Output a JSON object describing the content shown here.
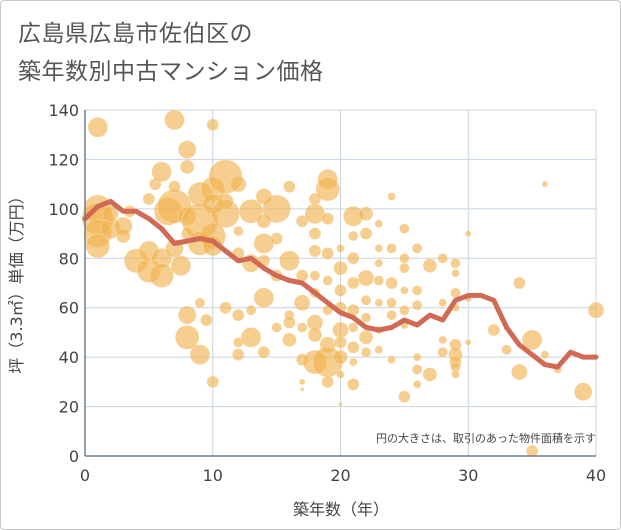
{
  "title": {
    "line1": "広島県広島市佐伯区の",
    "line2": "築年数別中古マンション価格"
  },
  "colors": {
    "bubble": "#f0b24c",
    "line": "#d06a55",
    "grid": "#c7d4e0",
    "axis": "#6d7e8f"
  },
  "chart_data": {
    "type": "scatter",
    "xlabel": "築年数（年）",
    "ylabel": "坪（3.3㎡）単価（万円）",
    "xlim": [
      0,
      40
    ],
    "ylim": [
      0,
      140
    ],
    "xticks": [
      "0",
      "10",
      "20",
      "30",
      "40"
    ],
    "yticks": [
      "0",
      "20",
      "40",
      "60",
      "80",
      "100",
      "120",
      "140"
    ],
    "grid": true,
    "note": "円の大きさは、取引のあった物件面積を示す",
    "bubbles": [
      [
        1,
        133,
        10
      ],
      [
        7,
        136,
        10
      ],
      [
        10,
        134,
        6
      ],
      [
        36,
        110,
        3
      ],
      [
        1,
        100,
        14
      ],
      [
        1,
        96,
        16
      ],
      [
        1,
        90,
        14
      ],
      [
        2,
        92,
        10
      ],
      [
        1,
        85,
        12
      ],
      [
        2,
        98,
        8
      ],
      [
        3,
        93,
        9
      ],
      [
        3,
        89,
        7
      ],
      [
        3.5,
        99,
        6
      ],
      [
        4,
        79,
        12
      ],
      [
        5,
        75,
        12
      ],
      [
        5,
        83,
        10
      ],
      [
        5.5,
        110,
        6
      ],
      [
        5,
        104,
        6
      ],
      [
        6,
        80,
        10
      ],
      [
        6,
        73,
        12
      ],
      [
        6,
        115,
        10
      ],
      [
        6.5,
        99,
        14
      ],
      [
        7,
        101,
        17
      ],
      [
        7,
        84,
        9
      ],
      [
        7.5,
        77,
        10
      ],
      [
        7,
        109,
        6
      ],
      [
        8,
        124,
        9
      ],
      [
        8,
        117,
        7
      ],
      [
        8,
        97,
        9
      ],
      [
        8,
        90,
        6
      ],
      [
        8,
        57,
        9
      ],
      [
        8,
        48,
        12
      ],
      [
        9,
        106,
        12
      ],
      [
        9,
        95,
        18
      ],
      [
        9,
        86,
        12
      ],
      [
        9,
        41,
        10
      ],
      [
        9,
        62,
        5
      ],
      [
        10,
        108,
        12
      ],
      [
        10,
        102,
        10
      ],
      [
        10,
        89,
        13
      ],
      [
        10,
        85,
        10
      ],
      [
        10,
        30,
        6
      ],
      [
        9.5,
        55,
        6
      ],
      [
        11,
        113,
        17
      ],
      [
        11,
        98,
        14
      ],
      [
        11,
        103,
        8
      ],
      [
        11,
        60,
        6
      ],
      [
        12,
        110,
        8
      ],
      [
        12,
        91,
        5
      ],
      [
        12,
        82,
        6
      ],
      [
        12,
        57,
        6
      ],
      [
        12,
        46,
        5
      ],
      [
        12,
        41,
        6
      ],
      [
        13,
        99,
        12
      ],
      [
        13,
        78,
        9
      ],
      [
        13,
        48,
        10
      ],
      [
        13,
        59,
        5
      ],
      [
        14,
        105,
        8
      ],
      [
        14,
        95,
        7
      ],
      [
        14,
        86,
        10
      ],
      [
        14,
        79,
        6
      ],
      [
        14,
        64,
        10
      ],
      [
        14,
        42,
        6
      ],
      [
        15,
        100,
        14
      ],
      [
        15,
        88,
        6
      ],
      [
        15,
        73,
        6
      ],
      [
        15,
        52,
        5
      ],
      [
        16,
        109,
        6
      ],
      [
        16,
        79,
        10
      ],
      [
        16,
        57,
        5
      ],
      [
        16,
        54,
        6
      ],
      [
        16,
        47,
        7
      ],
      [
        17,
        95,
        6
      ],
      [
        17,
        73,
        6
      ],
      [
        17,
        62,
        8
      ],
      [
        17,
        52,
        5
      ],
      [
        17,
        39,
        6
      ],
      [
        17,
        30,
        3
      ],
      [
        17,
        27,
        2
      ],
      [
        18,
        104,
        6
      ],
      [
        18,
        98,
        10
      ],
      [
        18,
        90,
        6
      ],
      [
        18,
        83,
        6
      ],
      [
        18,
        73,
        5
      ],
      [
        18,
        66,
        5
      ],
      [
        18,
        54,
        8
      ],
      [
        18,
        49,
        7
      ],
      [
        18,
        38,
        12
      ],
      [
        19,
        112,
        10
      ],
      [
        19,
        108,
        12
      ],
      [
        19,
        96,
        6
      ],
      [
        19,
        82,
        6
      ],
      [
        19,
        71,
        5
      ],
      [
        19,
        59,
        5
      ],
      [
        19,
        45,
        8
      ],
      [
        19,
        38,
        15
      ],
      [
        19,
        30,
        6
      ],
      [
        20,
        84,
        4
      ],
      [
        20,
        76,
        7
      ],
      [
        20,
        67,
        6
      ],
      [
        20,
        60,
        6
      ],
      [
        20,
        51,
        8
      ],
      [
        20,
        46,
        6
      ],
      [
        20,
        40,
        7
      ],
      [
        20,
        33,
        4
      ],
      [
        20,
        21,
        2
      ],
      [
        21,
        97,
        10
      ],
      [
        21,
        89,
        5
      ],
      [
        21,
        80,
        6
      ],
      [
        21,
        70,
        6
      ],
      [
        21,
        59,
        6
      ],
      [
        21,
        52,
        5
      ],
      [
        21,
        44,
        6
      ],
      [
        21,
        38,
        4
      ],
      [
        21,
        29,
        6
      ],
      [
        22,
        98,
        7
      ],
      [
        22,
        90,
        6
      ],
      [
        22,
        72,
        8
      ],
      [
        22,
        63,
        5
      ],
      [
        22,
        56,
        5
      ],
      [
        22,
        48,
        7
      ],
      [
        22,
        42,
        5
      ],
      [
        23,
        94,
        4
      ],
      [
        23,
        84,
        4
      ],
      [
        23,
        78,
        4
      ],
      [
        23,
        71,
        5
      ],
      [
        23,
        62,
        4
      ],
      [
        23,
        51,
        4
      ],
      [
        23,
        43,
        4
      ],
      [
        24,
        105,
        4
      ],
      [
        24,
        84,
        5
      ],
      [
        24,
        70,
        6
      ],
      [
        24,
        62,
        5
      ],
      [
        24,
        57,
        5
      ],
      [
        24,
        39,
        4
      ],
      [
        25,
        92,
        5
      ],
      [
        25,
        80,
        5
      ],
      [
        25,
        76,
        5
      ],
      [
        25,
        67,
        4
      ],
      [
        25,
        59,
        5
      ],
      [
        25,
        53,
        4
      ],
      [
        25,
        24,
        6
      ],
      [
        26,
        84,
        5
      ],
      [
        26,
        67,
        5
      ],
      [
        26,
        61,
        5
      ],
      [
        26,
        40,
        4
      ],
      [
        26,
        35,
        5
      ],
      [
        26,
        29,
        4
      ],
      [
        27,
        77,
        7
      ],
      [
        27,
        33,
        7
      ],
      [
        28,
        80,
        5
      ],
      [
        28,
        62,
        4
      ],
      [
        28,
        47,
        4
      ],
      [
        28,
        42,
        5
      ],
      [
        29,
        78,
        5
      ],
      [
        29,
        74,
        4
      ],
      [
        29,
        66,
        5
      ],
      [
        29,
        60,
        4
      ],
      [
        29,
        45,
        6
      ],
      [
        29,
        41,
        7
      ],
      [
        29,
        38,
        6
      ],
      [
        29,
        36,
        5
      ],
      [
        29,
        33,
        4
      ],
      [
        30,
        90,
        3
      ],
      [
        30,
        64,
        4
      ],
      [
        30,
        46,
        3
      ],
      [
        32,
        51,
        6
      ],
      [
        33,
        43,
        5
      ],
      [
        34,
        70,
        6
      ],
      [
        34,
        34,
        8
      ],
      [
        35,
        47,
        10
      ],
      [
        36,
        41,
        4
      ],
      [
        35,
        2,
        6
      ],
      [
        37,
        35,
        4
      ],
      [
        39,
        26,
        9
      ],
      [
        40,
        59,
        8
      ]
    ],
    "series": [
      {
        "type": "line",
        "x": [
          0,
          1,
          2,
          3,
          4,
          5,
          6,
          7,
          8,
          9,
          10,
          11,
          12,
          13,
          14,
          15,
          16,
          17,
          18,
          19,
          20,
          21,
          22,
          23,
          24,
          25,
          26,
          27,
          28,
          29,
          30,
          31,
          32,
          33,
          34,
          35,
          36,
          37,
          38,
          39,
          40
        ],
        "values": [
          96,
          101,
          103,
          99,
          99,
          96,
          92,
          86,
          87,
          88,
          87,
          83,
          79,
          80,
          76,
          73,
          71,
          70,
          66,
          62,
          58,
          56,
          52,
          51,
          52,
          55,
          53,
          57,
          55,
          63,
          65,
          65,
          63,
          52,
          45,
          41,
          37,
          36,
          42,
          40,
          40
        ]
      }
    ]
  }
}
